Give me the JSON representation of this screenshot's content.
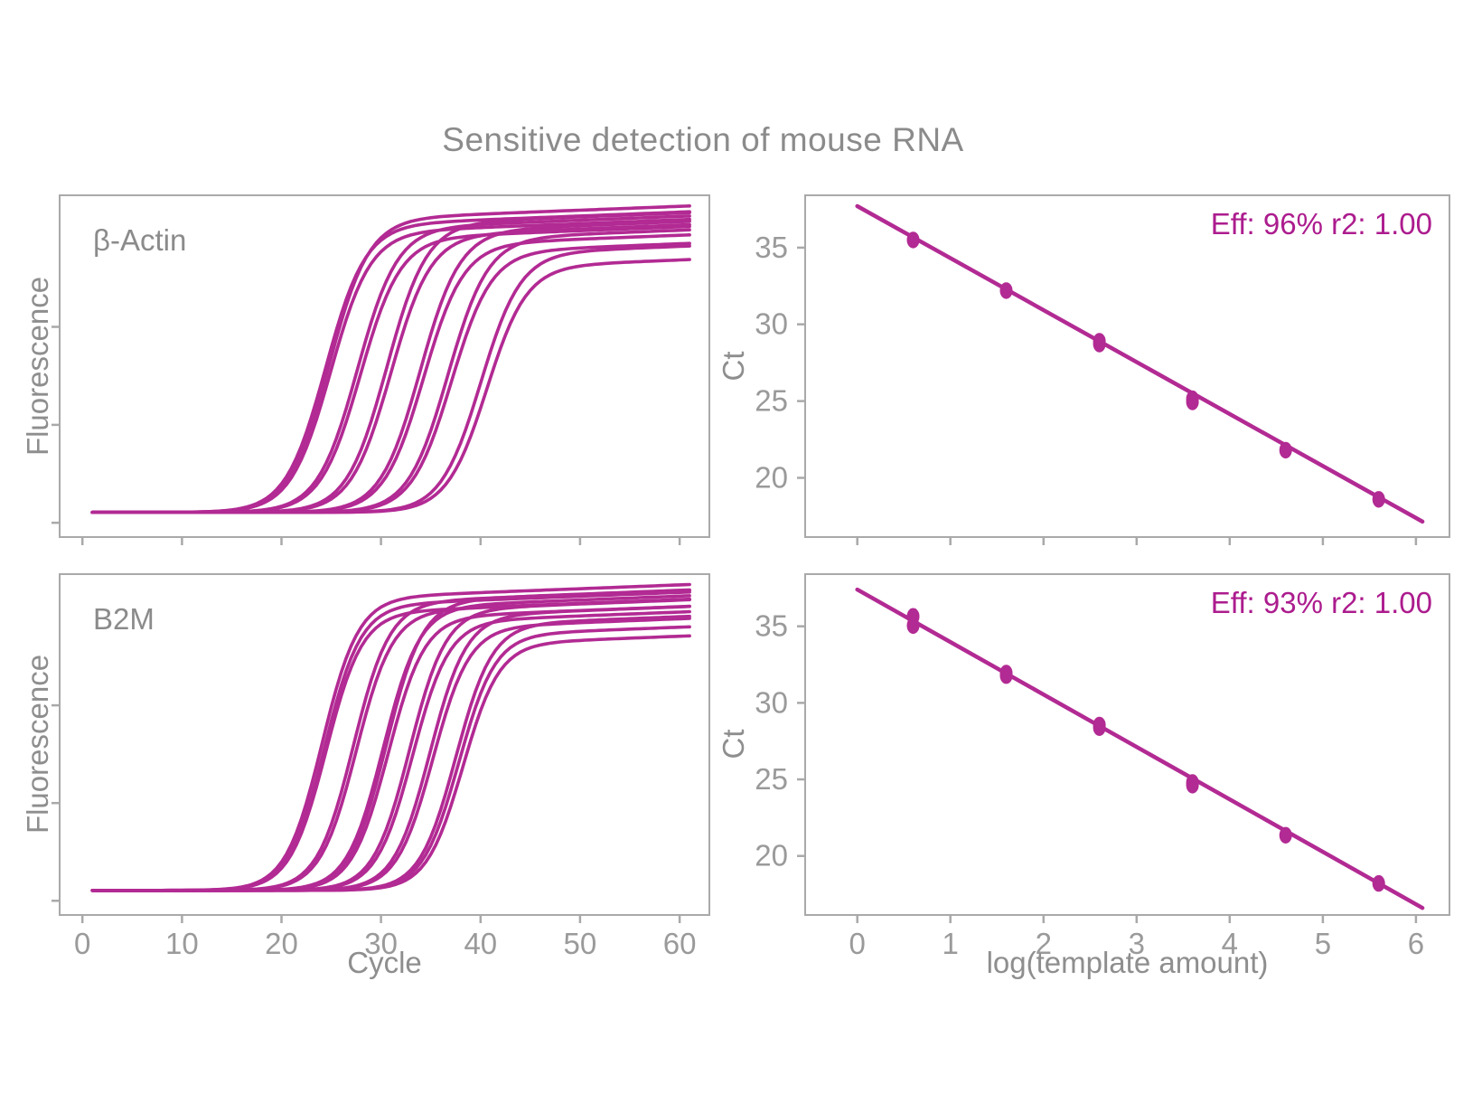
{
  "title": "Sensitive detection of mouse RNA",
  "colors": {
    "accent": "#B22A93",
    "annotation_text": "#AC1C8E",
    "axis_line": "#A9A9A9",
    "panel_border": "#A9A9A9",
    "tick_text": "#9A9A9A",
    "axis_title_text": "#8E8E8E",
    "label_text": "#8B8B8B",
    "background": "#FFFFFF"
  },
  "chart_data": [
    {
      "id": "actin-amplification",
      "type": "line",
      "panel": "top-left",
      "label": "β-Actin",
      "xlabel": "Cycle",
      "ylabel": "Fluorescence",
      "xlim": [
        -2.2,
        62.9
      ],
      "ylim": [
        -0.045,
        1.1
      ],
      "xticks": [
        0,
        10,
        20,
        30,
        40,
        50,
        60
      ],
      "xtick_labels": false,
      "yticks_unlabeled_fluorescence": [
        0,
        0.33,
        0.66
      ],
      "curve_model": {
        "baseline": 0.035,
        "steepness": 0.5,
        "plateau_drift_per_cycle": 0.0013,
        "x_start": 1,
        "x_end": 61
      },
      "groups": [
        {
          "log_template": 5.6,
          "midpoint_cycle": 24.6,
          "replicates": [
            {
              "shift": -0.2,
              "plateau": 1.0
            },
            {
              "shift": 0.15,
              "plateau": 1.02
            },
            {
              "shift": 0.3,
              "plateau": 0.975
            }
          ]
        },
        {
          "log_template": 4.6,
          "midpoint_cycle": 27.7,
          "replicates": [
            {
              "shift": -0.1,
              "plateau": 0.99
            },
            {
              "shift": 0.2,
              "plateau": 0.955
            }
          ]
        },
        {
          "log_template": 3.6,
          "midpoint_cycle": 30.7,
          "replicates": [
            {
              "shift": -0.15,
              "plateau": 1.005
            },
            {
              "shift": 0.25,
              "plateau": 0.965
            }
          ]
        },
        {
          "log_template": 2.6,
          "midpoint_cycle": 33.9,
          "replicates": [
            {
              "shift": 0,
              "plateau": 0.98
            },
            {
              "shift": 0.35,
              "plateau": 0.935
            }
          ]
        },
        {
          "log_template": 1.6,
          "midpoint_cycle": 36.8,
          "replicates": [
            {
              "shift": -0.1,
              "plateau": 0.955
            },
            {
              "shift": 0.25,
              "plateau": 0.91
            }
          ]
        },
        {
          "log_template": 0.6,
          "midpoint_cycle": 40.0,
          "replicates": [
            {
              "shift": 0,
              "plateau": 0.905
            },
            {
              "shift": 0.6,
              "plateau": 0.86
            }
          ]
        }
      ]
    },
    {
      "id": "actin-standard-curve",
      "type": "scatter",
      "panel": "top-right",
      "annotation": "Eff: 96% r2: 1.00",
      "efficiency_pct": 96,
      "r_squared": 1.0,
      "xlabel": "log(template amount)",
      "ylabel": "Ct",
      "xlim": [
        -0.55,
        6.35
      ],
      "ylim": [
        16.2,
        38.35
      ],
      "xticks": [
        0,
        1,
        2,
        3,
        4,
        5,
        6
      ],
      "xtick_labels": false,
      "yticks": [
        20,
        25,
        30,
        35
      ],
      "points": [
        [
          0.6,
          35.5
        ],
        [
          1.6,
          32.2
        ],
        [
          2.6,
          28.9
        ],
        [
          2.6,
          28.72
        ],
        [
          3.6,
          25.15
        ],
        [
          3.6,
          24.95
        ],
        [
          4.6,
          21.8
        ],
        [
          5.6,
          18.6
        ]
      ],
      "fit_line": {
        "x1": 0,
        "y1": 37.7,
        "x2": 6.07,
        "y2": 17.15
      }
    },
    {
      "id": "b2m-amplification",
      "type": "line",
      "panel": "bottom-left",
      "label": "B2M",
      "xlabel": "Cycle",
      "ylabel": "Fluorescence",
      "xlim": [
        -2.2,
        62.9
      ],
      "ylim": [
        -0.045,
        1.1
      ],
      "xticks": [
        0,
        10,
        20,
        30,
        40,
        50,
        60
      ],
      "xtick_labels": true,
      "yticks_unlabeled_fluorescence": [
        0,
        0.33,
        0.66
      ],
      "curve_model": {
        "baseline": 0.035,
        "steepness": 0.55,
        "plateau_drift_per_cycle": 0.0013,
        "x_start": 1,
        "x_end": 61
      },
      "groups": [
        {
          "log_template": 5.6,
          "midpoint_cycle": 24.2,
          "replicates": [
            {
              "shift": -0.15,
              "plateau": 1.02
            },
            {
              "shift": 0.1,
              "plateau": 0.995
            },
            {
              "shift": 0.25,
              "plateau": 0.97
            }
          ]
        },
        {
          "log_template": 4.6,
          "midpoint_cycle": 27.3,
          "replicates": [
            {
              "shift": -0.1,
              "plateau": 1.005
            },
            {
              "shift": 0.2,
              "plateau": 0.975
            }
          ]
        },
        {
          "log_template": 3.6,
          "midpoint_cycle": 30.4,
          "replicates": [
            {
              "shift": -0.2,
              "plateau": 0.99
            },
            {
              "shift": 0.1,
              "plateau": 1.01
            },
            {
              "shift": 0.3,
              "plateau": 0.955
            }
          ]
        },
        {
          "log_template": 2.6,
          "midpoint_cycle": 33.0,
          "replicates": [
            {
              "shift": -0.15,
              "plateau": 0.98
            },
            {
              "shift": 0.15,
              "plateau": 0.94
            }
          ]
        },
        {
          "log_template": 1.6,
          "midpoint_cycle": 35.0,
          "replicates": [
            {
              "shift": -0.1,
              "plateau": 0.96
            },
            {
              "shift": 0.2,
              "plateau": 0.92
            }
          ]
        },
        {
          "log_template": 0.6,
          "midpoint_cycle": 37.7,
          "replicates": [
            {
              "shift": -0.2,
              "plateau": 0.93
            },
            {
              "shift": 0.1,
              "plateau": 0.895
            },
            {
              "shift": 0.5,
              "plateau": 0.865
            }
          ]
        }
      ]
    },
    {
      "id": "b2m-standard-curve",
      "type": "scatter",
      "panel": "bottom-right",
      "annotation": "Eff: 93% r2: 1.00",
      "efficiency_pct": 93,
      "r_squared": 1.0,
      "xlabel": "log(template amount)",
      "ylabel": "Ct",
      "xlim": [
        -0.55,
        6.35
      ],
      "ylim": [
        16.2,
        38.35
      ],
      "xticks": [
        0,
        1,
        2,
        3,
        4,
        5,
        6
      ],
      "xtick_labels": true,
      "yticks": [
        20,
        25,
        30,
        35
      ],
      "points": [
        [
          0.6,
          35.65
        ],
        [
          0.6,
          35.05
        ],
        [
          1.6,
          31.95
        ],
        [
          1.6,
          31.78
        ],
        [
          2.6,
          28.55
        ],
        [
          2.6,
          28.38
        ],
        [
          3.6,
          24.8
        ],
        [
          3.6,
          24.62
        ],
        [
          4.6,
          21.35
        ],
        [
          5.6,
          18.2
        ]
      ],
      "fit_line": {
        "x1": 0,
        "y1": 37.4,
        "x2": 6.07,
        "y2": 16.6
      }
    }
  ]
}
